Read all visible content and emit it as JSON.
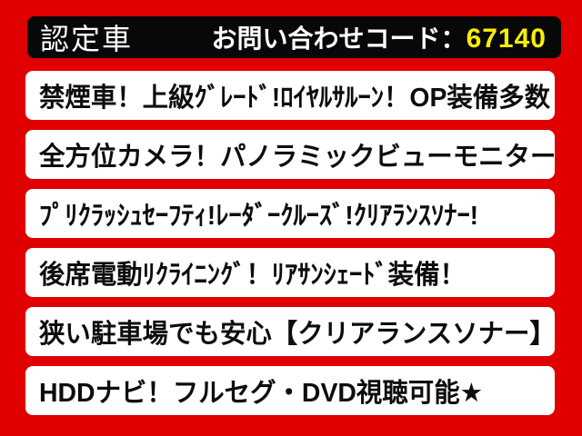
{
  "colors": {
    "background": "#e00000",
    "top_bar_background": "#080808",
    "top_bar_text": "#ffffff",
    "inquiry_code_color": "#f7ef00",
    "row_background": "#ffffff",
    "row_text": "#0d0d0d"
  },
  "header": {
    "badge": "認定車",
    "inquiry_label": "お問い合わせコード：",
    "inquiry_code": "67140"
  },
  "rows": [
    {
      "text": "禁煙車！上級ｸﾞﾚｰﾄﾞ!ﾛｲﾔﾙｻﾙｰﾝ！OP装備多数"
    },
    {
      "text": "全方位カメラ！パノラミックビューモニター"
    },
    {
      "text": "ﾌﾟﾘｸﾗｯｼｭｾｰﾌﾃｨ!ﾚｰﾀﾞｰｸﾙｰｽﾞ!ｸﾘｱﾗﾝｽｿﾅｰ!"
    },
    {
      "text": "後席電動ﾘｸﾗｲﾆﾝｸﾞ！ﾘｱｻﾝｼｪｰﾄﾞ装備！"
    },
    {
      "text": "狭い駐車場でも安心【クリアランスソナー】"
    },
    {
      "text": "HDDナビ！フルセグ・DVD視聴可能★"
    }
  ]
}
